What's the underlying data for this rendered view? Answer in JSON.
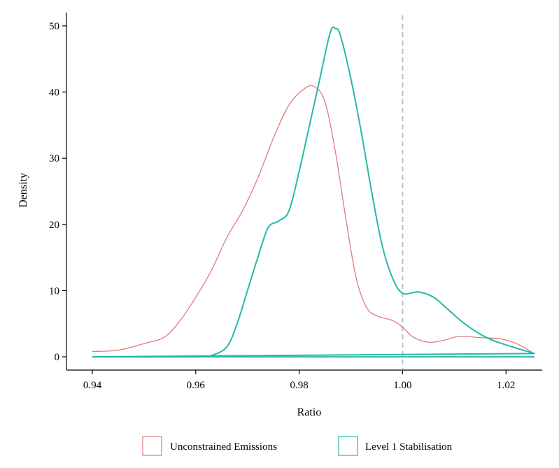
{
  "chart_data": {
    "type": "line",
    "title": "",
    "xlabel": "Ratio",
    "ylabel": "Density",
    "xlim": [
      0.935,
      1.027
    ],
    "ylim": [
      -2,
      52
    ],
    "xticks": [
      0.94,
      0.96,
      0.98,
      1.0,
      1.02
    ],
    "xtick_labels": [
      "0.94",
      "0.96",
      "0.98",
      "1.00",
      "1.02"
    ],
    "yticks": [
      0,
      10,
      20,
      30,
      40,
      50
    ],
    "ytick_labels": [
      "0",
      "10",
      "20",
      "30",
      "40",
      "50"
    ],
    "grid": false,
    "legend_position": "bottom",
    "reference_line": {
      "x": 1.0,
      "style": "dashed",
      "color": "#bdbdbd"
    },
    "series": [
      {
        "name": "Unconstrained Emissions",
        "color": "#e07b7b",
        "points": [
          [
            0.94,
            0.8
          ],
          [
            0.945,
            1.0
          ],
          [
            0.95,
            2.0
          ],
          [
            0.954,
            3.0
          ],
          [
            0.957,
            5.5
          ],
          [
            0.96,
            9.0
          ],
          [
            0.963,
            13.0
          ],
          [
            0.966,
            18.0
          ],
          [
            0.969,
            22.0
          ],
          [
            0.972,
            27.0
          ],
          [
            0.975,
            33.0
          ],
          [
            0.978,
            38.0
          ],
          [
            0.981,
            40.5
          ],
          [
            0.983,
            40.8
          ],
          [
            0.985,
            38.5
          ],
          [
            0.987,
            31.0
          ],
          [
            0.989,
            21.0
          ],
          [
            0.991,
            12.0
          ],
          [
            0.993,
            7.5
          ],
          [
            0.995,
            6.2
          ],
          [
            0.998,
            5.5
          ],
          [
            1.0,
            4.5
          ],
          [
            1.002,
            3.0
          ],
          [
            1.005,
            2.2
          ],
          [
            1.008,
            2.5
          ],
          [
            1.011,
            3.1
          ],
          [
            1.015,
            2.9
          ],
          [
            1.019,
            2.7
          ],
          [
            1.022,
            2.0
          ],
          [
            1.0255,
            0.5
          ]
        ]
      },
      {
        "name": "Level 1 Stabilisation",
        "color": "#26b8a8",
        "points": [
          [
            0.94,
            0.0
          ],
          [
            0.96,
            0.0
          ],
          [
            0.963,
            0.2
          ],
          [
            0.966,
            1.5
          ],
          [
            0.968,
            5.0
          ],
          [
            0.97,
            10.0
          ],
          [
            0.972,
            15.0
          ],
          [
            0.974,
            19.5
          ],
          [
            0.976,
            20.5
          ],
          [
            0.978,
            22.0
          ],
          [
            0.98,
            28.0
          ],
          [
            0.982,
            35.0
          ],
          [
            0.984,
            42.0
          ],
          [
            0.986,
            49.0
          ],
          [
            0.987,
            49.6
          ],
          [
            0.988,
            48.5
          ],
          [
            0.99,
            42.0
          ],
          [
            0.992,
            34.0
          ],
          [
            0.994,
            25.0
          ],
          [
            0.996,
            17.0
          ],
          [
            0.998,
            12.0
          ],
          [
            1.0,
            9.6
          ],
          [
            1.003,
            9.8
          ],
          [
            1.006,
            9.0
          ],
          [
            1.009,
            7.0
          ],
          [
            1.012,
            5.0
          ],
          [
            1.016,
            3.0
          ],
          [
            1.02,
            1.8
          ],
          [
            1.0255,
            0.5
          ]
        ]
      },
      {
        "name": "Level 1 Stabilisation baseline",
        "color": "#26b8a8",
        "points": [
          [
            0.94,
            0.0
          ],
          [
            1.0255,
            0.0
          ]
        ],
        "hidden_in_legend": true
      }
    ]
  },
  "legend": {
    "items": [
      {
        "label": "Unconstrained Emissions",
        "color": "#e07b7b"
      },
      {
        "label": "Level 1 Stabilisation",
        "color": "#26b8a8"
      }
    ]
  }
}
